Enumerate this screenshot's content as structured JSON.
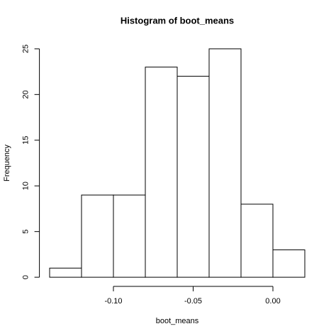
{
  "chart_data": {
    "type": "histogram",
    "title": "Histogram of boot_means",
    "x_label": "boot_means",
    "y_label": "Frequency",
    "bins": [
      -0.14,
      -0.12,
      -0.1,
      -0.08,
      -0.06,
      -0.04,
      -0.02,
      0.0,
      0.02
    ],
    "values": [
      1,
      9,
      9,
      23,
      22,
      25,
      8,
      3
    ],
    "color": "#ffffff",
    "edge_color": "#000000",
    "xlim": [
      -0.1464,
      0.0264
    ],
    "ylim": [
      -1,
      26
    ],
    "xticks": [
      {
        "value": -0.1,
        "label": "-0.10"
      },
      {
        "value": -0.05,
        "label": "-0.05"
      },
      {
        "value": 0,
        "label": "0.00"
      }
    ],
    "yticks": [
      0,
      5,
      10,
      15,
      20,
      25
    ],
    "grid": false
  }
}
